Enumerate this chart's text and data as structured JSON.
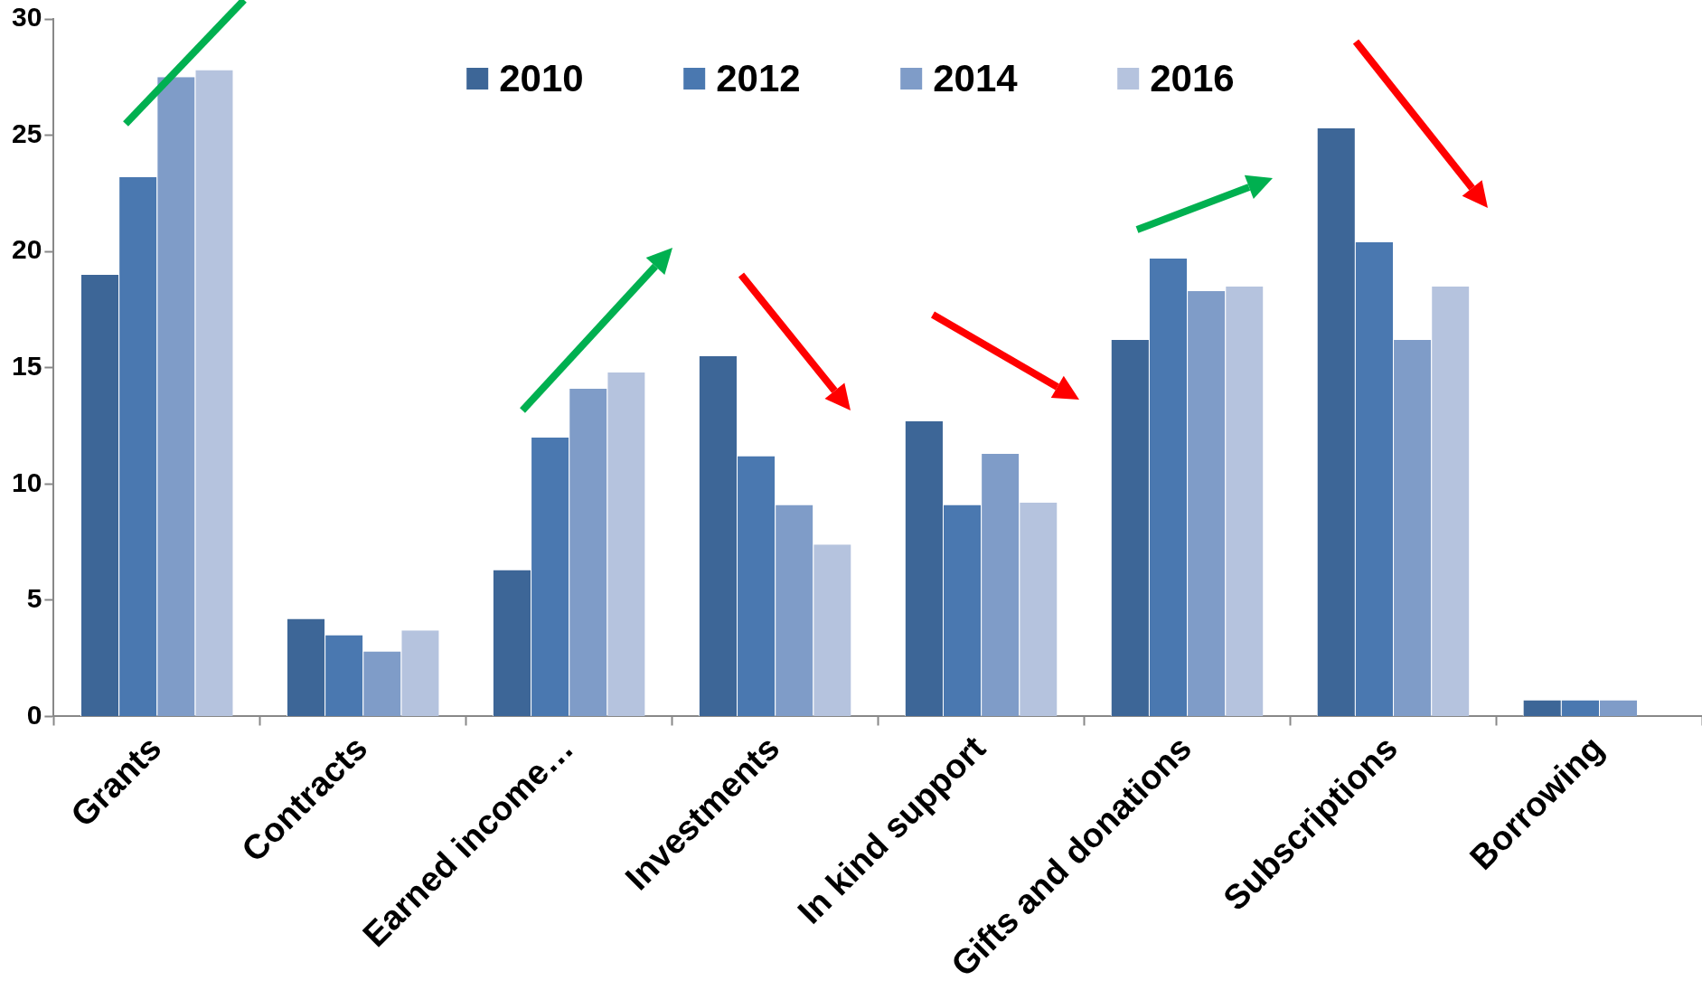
{
  "chart_data": {
    "type": "bar",
    "categories": [
      "Grants",
      "Contracts",
      "Earned income…",
      "Investments",
      "In kind support",
      "Gifts and donations",
      "Subscriptions",
      "Borrowing"
    ],
    "series": [
      {
        "name": "2010",
        "color": "#3d6697",
        "values": [
          19.0,
          4.2,
          6.3,
          15.5,
          12.7,
          16.2,
          25.3,
          0.7
        ]
      },
      {
        "name": "2012",
        "color": "#4a78b0",
        "values": [
          23.2,
          3.5,
          12.0,
          11.2,
          9.1,
          19.7,
          20.4,
          0.7
        ]
      },
      {
        "name": "2014",
        "color": "#7f9cc8",
        "values": [
          27.5,
          2.8,
          14.1,
          9.1,
          11.3,
          18.3,
          16.2,
          0.7
        ]
      },
      {
        "name": "2016",
        "color": "#b5c3de",
        "values": [
          27.8,
          3.7,
          14.8,
          7.4,
          9.2,
          18.5,
          18.5,
          null
        ]
      }
    ],
    "ylim": [
      0,
      30
    ],
    "yticks": [
      0,
      5,
      10,
      15,
      20,
      25,
      30
    ],
    "grid": false,
    "legend": "top"
  }
}
